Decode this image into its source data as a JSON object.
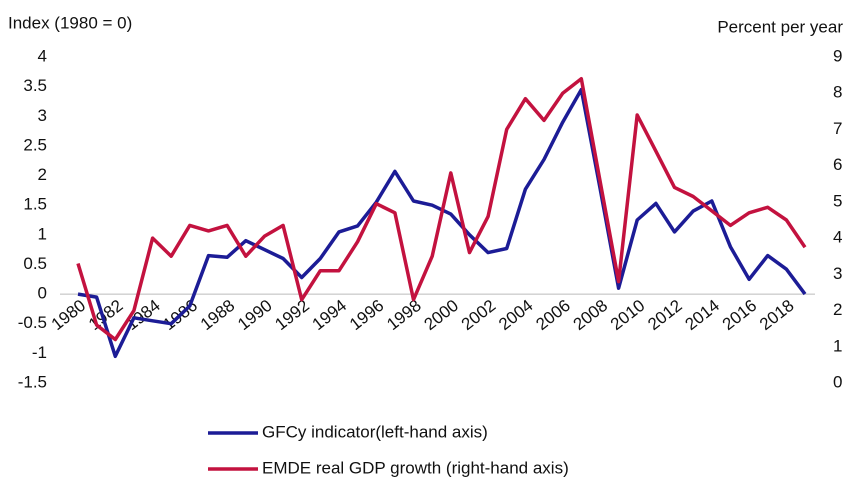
{
  "chart_data": {
    "type": "line",
    "y_label": "Index (1980 = 0)",
    "y2_label": "Percent per year",
    "categories": [
      "1980",
      null,
      "1982",
      null,
      "1984",
      null,
      "1986",
      null,
      "1988",
      null,
      "1990",
      null,
      "1992",
      null,
      "1994",
      null,
      "1996",
      null,
      "1998",
      null,
      "2000",
      null,
      "2002",
      null,
      "2004",
      null,
      "2006",
      null,
      "2008",
      null,
      "2010",
      null,
      "2012",
      null,
      "2014",
      null,
      "2016",
      null,
      "2018",
      null
    ],
    "series": [
      {
        "name": "GFCy indicator(left-hand axis)",
        "color": "#1c1c96",
        "axis": "y",
        "values": [
          0,
          -0.05,
          -1.05,
          -0.4,
          -0.45,
          -0.5,
          -0.2,
          0.65,
          0.62,
          0.9,
          0.75,
          0.6,
          0.28,
          0.6,
          1.05,
          1.15,
          1.55,
          2.07,
          1.57,
          1.5,
          1.35,
          1.0,
          0.7,
          0.77,
          1.77,
          2.27,
          2.9,
          3.45,
          1.8,
          0.1,
          1.25,
          1.53,
          1.05,
          1.4,
          1.57,
          0.8,
          0.25,
          0.65,
          0.42,
          0
        ]
      },
      {
        "name": "EMDE real GDP growth (right-hand axis)",
        "color": "#c3123f",
        "axis": "y2",
        "values": [
          3.3,
          1.6,
          1.2,
          2.0,
          4.0,
          3.5,
          4.35,
          4.2,
          4.35,
          3.5,
          4.05,
          4.35,
          2.3,
          3.1,
          3.1,
          3.9,
          4.95,
          4.7,
          2.3,
          3.5,
          5.8,
          3.6,
          4.6,
          7.0,
          7.85,
          7.25,
          8.0,
          8.4,
          5.6,
          2.8,
          7.4,
          6.4,
          5.4,
          5.15,
          4.75,
          4.35,
          4.7,
          4.85,
          4.5,
          3.75
        ]
      }
    ],
    "ylim": [
      -1.5,
      4
    ],
    "yticks": [
      -1.5,
      -1,
      -0.5,
      0,
      0.5,
      1,
      1.5,
      2,
      2.5,
      3,
      3.5,
      4
    ],
    "y2lim": [
      0,
      9
    ],
    "y2ticks": [
      0,
      1,
      2,
      3,
      4,
      5,
      6,
      7,
      8,
      9
    ],
    "grid": false
  }
}
